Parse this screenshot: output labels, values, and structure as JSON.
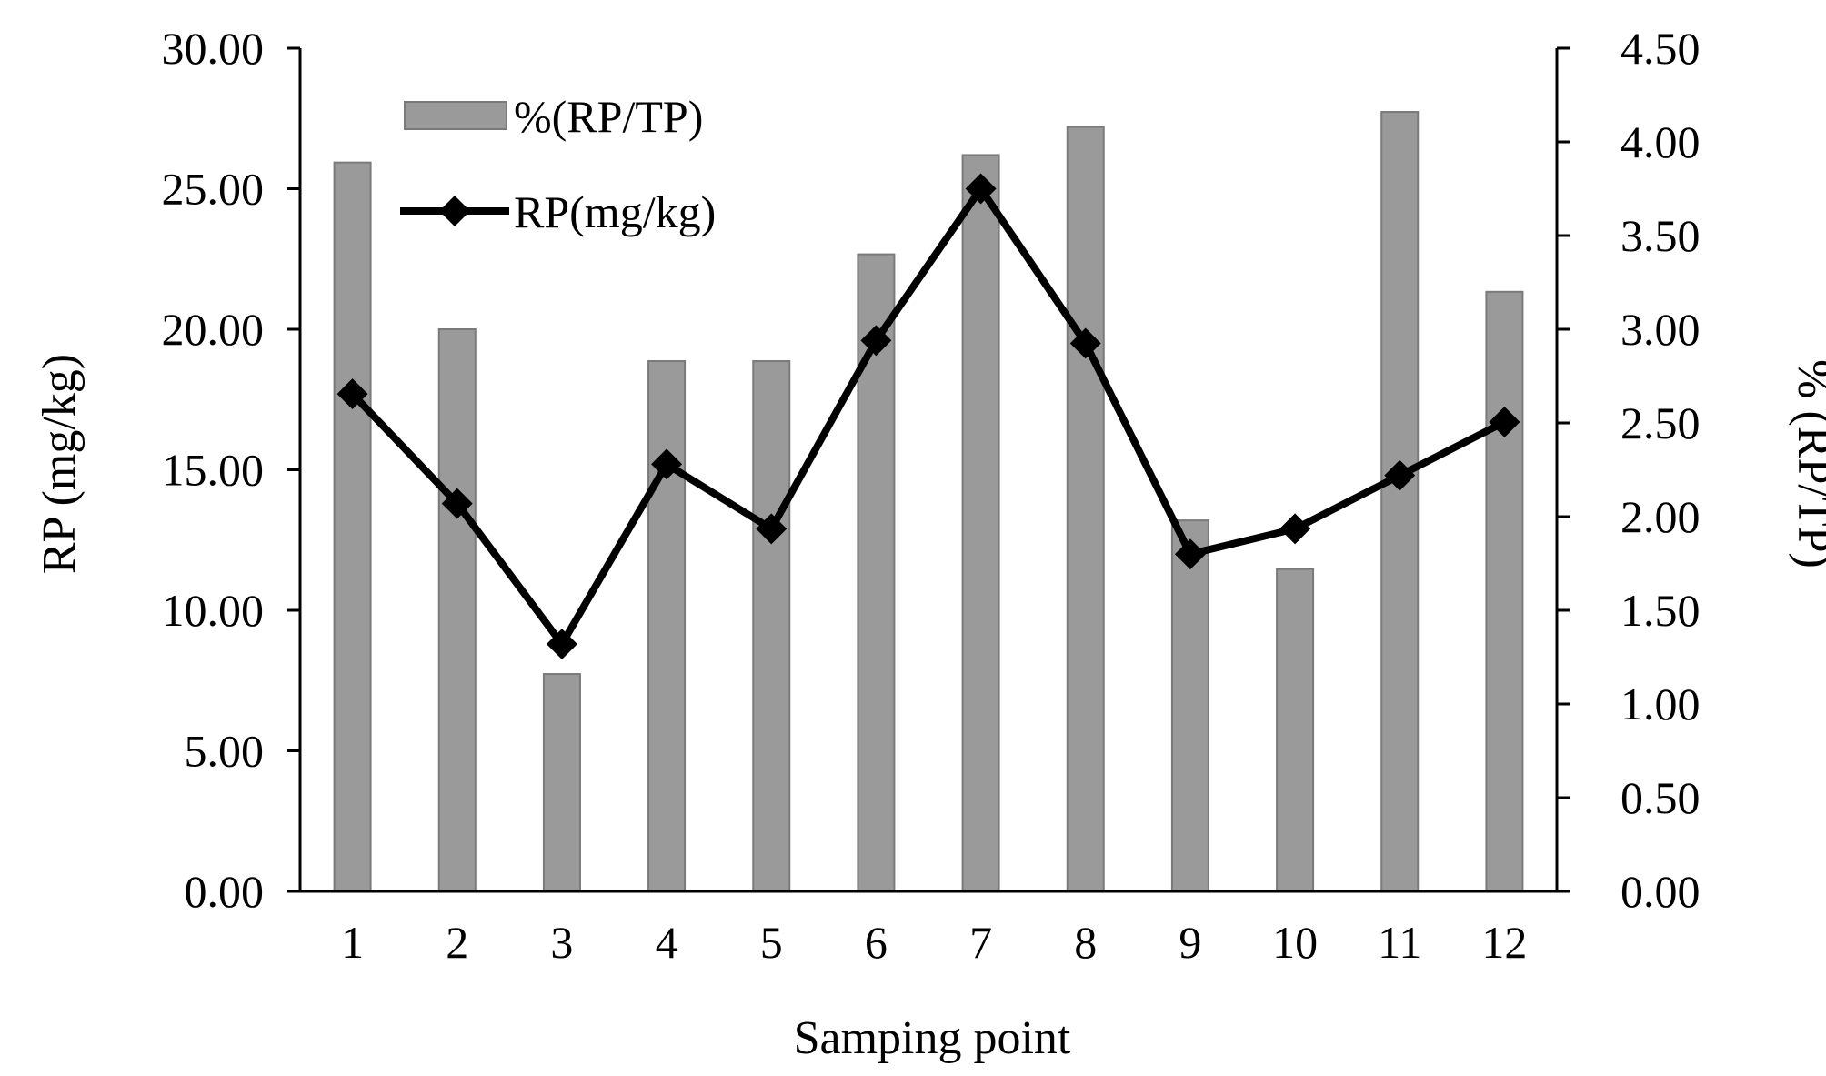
{
  "chart_data": {
    "type": "bar+line",
    "categories": [
      "1",
      "2",
      "3",
      "4",
      "5",
      "6",
      "7",
      "8",
      "9",
      "10",
      "11",
      "12"
    ],
    "xlabel": "Samping point",
    "ylabel_left": "RP (mg/kg)",
    "ylabel_right": "% (RP/TP)",
    "left_axis": {
      "min": 0,
      "max": 30,
      "step": 5,
      "tick_labels": [
        "0.00",
        "5.00",
        "10.00",
        "15.00",
        "20.00",
        "25.00",
        "30.00"
      ]
    },
    "right_axis": {
      "min": 0,
      "max": 4.5,
      "step": 0.5,
      "tick_labels": [
        "0.00",
        "0.50",
        "1.00",
        "1.50",
        "2.00",
        "2.50",
        "3.00",
        "3.50",
        "4.00",
        "4.50"
      ]
    },
    "series": [
      {
        "name": "%(RP/TP)",
        "kind": "bar",
        "axis": "right",
        "color": "#9a9a9a",
        "values": [
          3.89,
          3.0,
          1.16,
          2.83,
          2.83,
          3.4,
          3.93,
          4.08,
          1.98,
          1.72,
          4.16,
          3.2
        ]
      },
      {
        "name": "RP(mg/kg)",
        "kind": "line",
        "axis": "left",
        "color": "#000000",
        "values": [
          17.7,
          13.8,
          8.8,
          15.2,
          12.9,
          19.6,
          25.0,
          19.5,
          12.0,
          12.9,
          14.8,
          16.7
        ]
      }
    ],
    "legend_position": "top-left",
    "grid": false
  }
}
